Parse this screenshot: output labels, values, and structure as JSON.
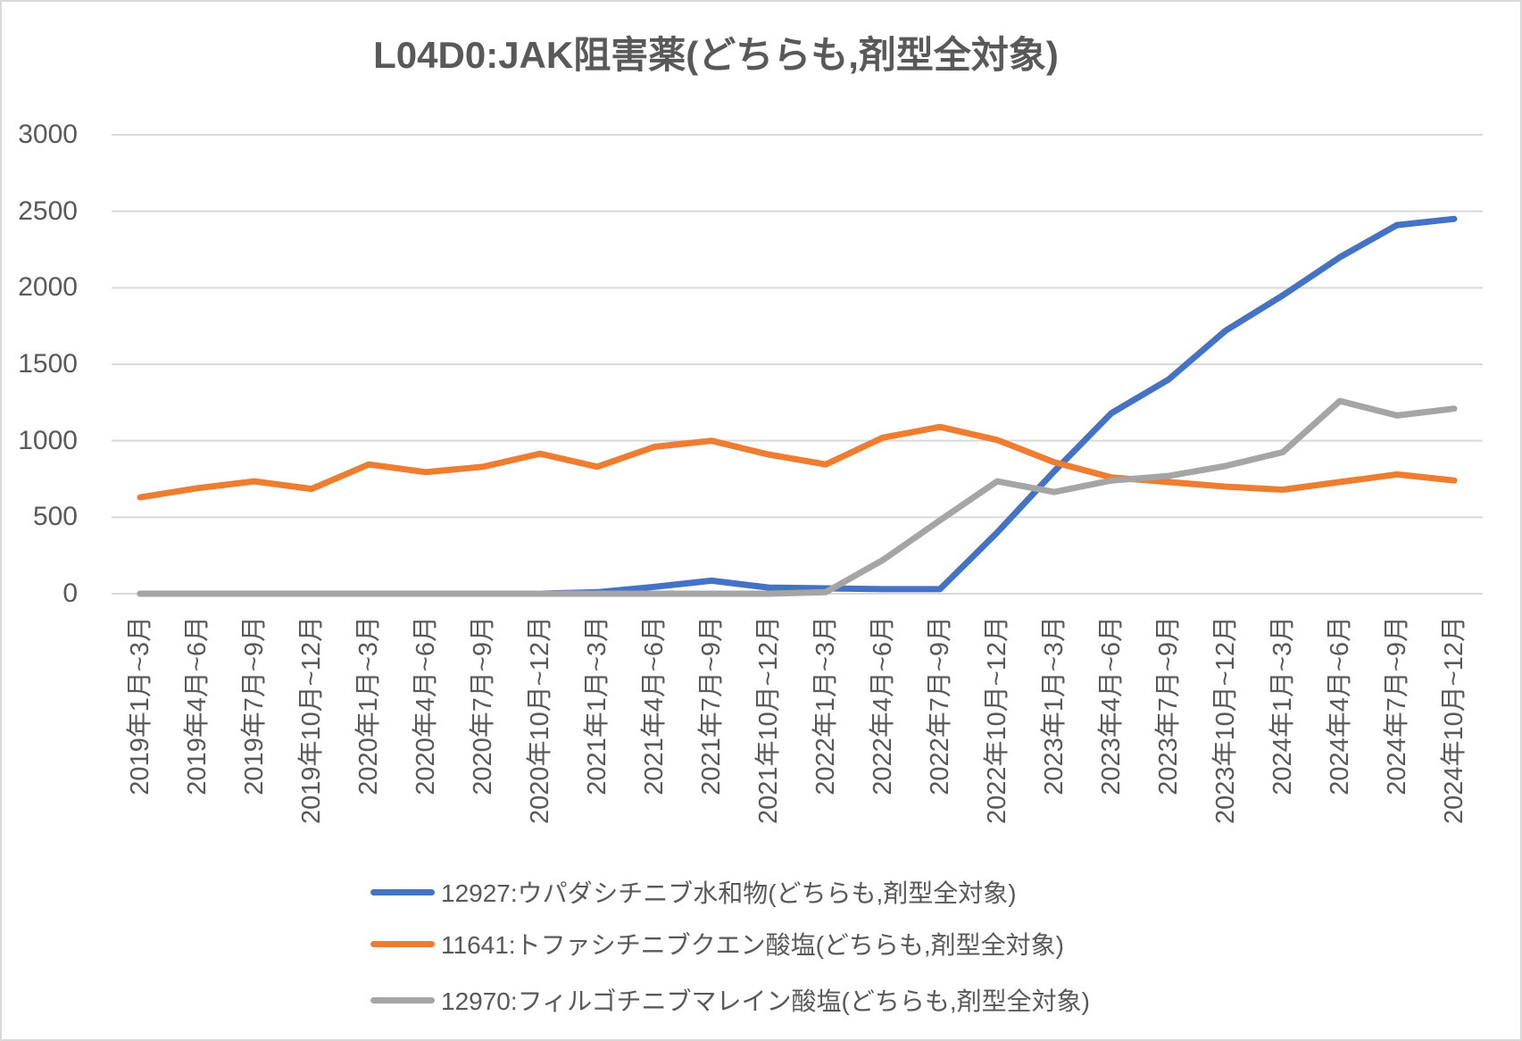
{
  "title": "L04D0:JAK阻害薬(どちらも,剤型全対象)",
  "colors": {
    "grid": "#D9D9D9",
    "axis_text": "#595959",
    "title_text": "#595959"
  },
  "chart_data": {
    "type": "line",
    "title": "L04D0:JAK阻害薬(どちらも,剤型全対象)",
    "xlabel": "",
    "ylabel": "",
    "ylim": [
      0,
      3000
    ],
    "grid": true,
    "legend_position": "bottom-left-stacked",
    "y_ticks": [
      0,
      500,
      1000,
      1500,
      2000,
      2500,
      3000
    ],
    "categories": [
      "2019年1月~3月",
      "2019年4月~6月",
      "2019年7月~9月",
      "2019年10月~12月",
      "2020年1月~3月",
      "2020年4月~6月",
      "2020年7月~9月",
      "2020年10月~12月",
      "2021年1月~3月",
      "2021年4月~6月",
      "2021年7月~9月",
      "2021年10月~12月",
      "2022年1月~3月",
      "2022年4月~6月",
      "2022年7月~9月",
      "2022年10月~12月",
      "2023年1月~3月",
      "2023年4月~6月",
      "2023年7月~9月",
      "2023年10月~12月",
      "2024年1月~3月",
      "2024年4月~6月",
      "2024年7月~9月",
      "2024年10月~12月"
    ],
    "series": [
      {
        "name": "12927:ウパダシチニブ水和物(どちらも,剤型全対象)",
        "color": "#4472C4",
        "values": [
          0,
          0,
          0,
          0,
          0,
          0,
          0,
          0,
          10,
          45,
          85,
          40,
          35,
          30,
          30,
          400,
          800,
          1180,
          1400,
          1720,
          1950,
          2200,
          2410,
          2450
        ]
      },
      {
        "name": "11641:トファシチニブクエン酸塩(どちらも,剤型全対象)",
        "color": "#ED7D31",
        "values": [
          630,
          690,
          735,
          685,
          845,
          795,
          830,
          915,
          830,
          960,
          1000,
          910,
          845,
          1020,
          1090,
          1005,
          860,
          760,
          730,
          700,
          680,
          730,
          780,
          740
        ]
      },
      {
        "name": "12970:フィルゴチニブマレイン酸塩(どちらも,剤型全対象)",
        "color": "#A5A5A5",
        "values": [
          0,
          0,
          0,
          0,
          0,
          0,
          0,
          0,
          0,
          0,
          0,
          0,
          10,
          220,
          480,
          735,
          665,
          740,
          770,
          835,
          925,
          1260,
          1165,
          1210
        ]
      }
    ]
  }
}
